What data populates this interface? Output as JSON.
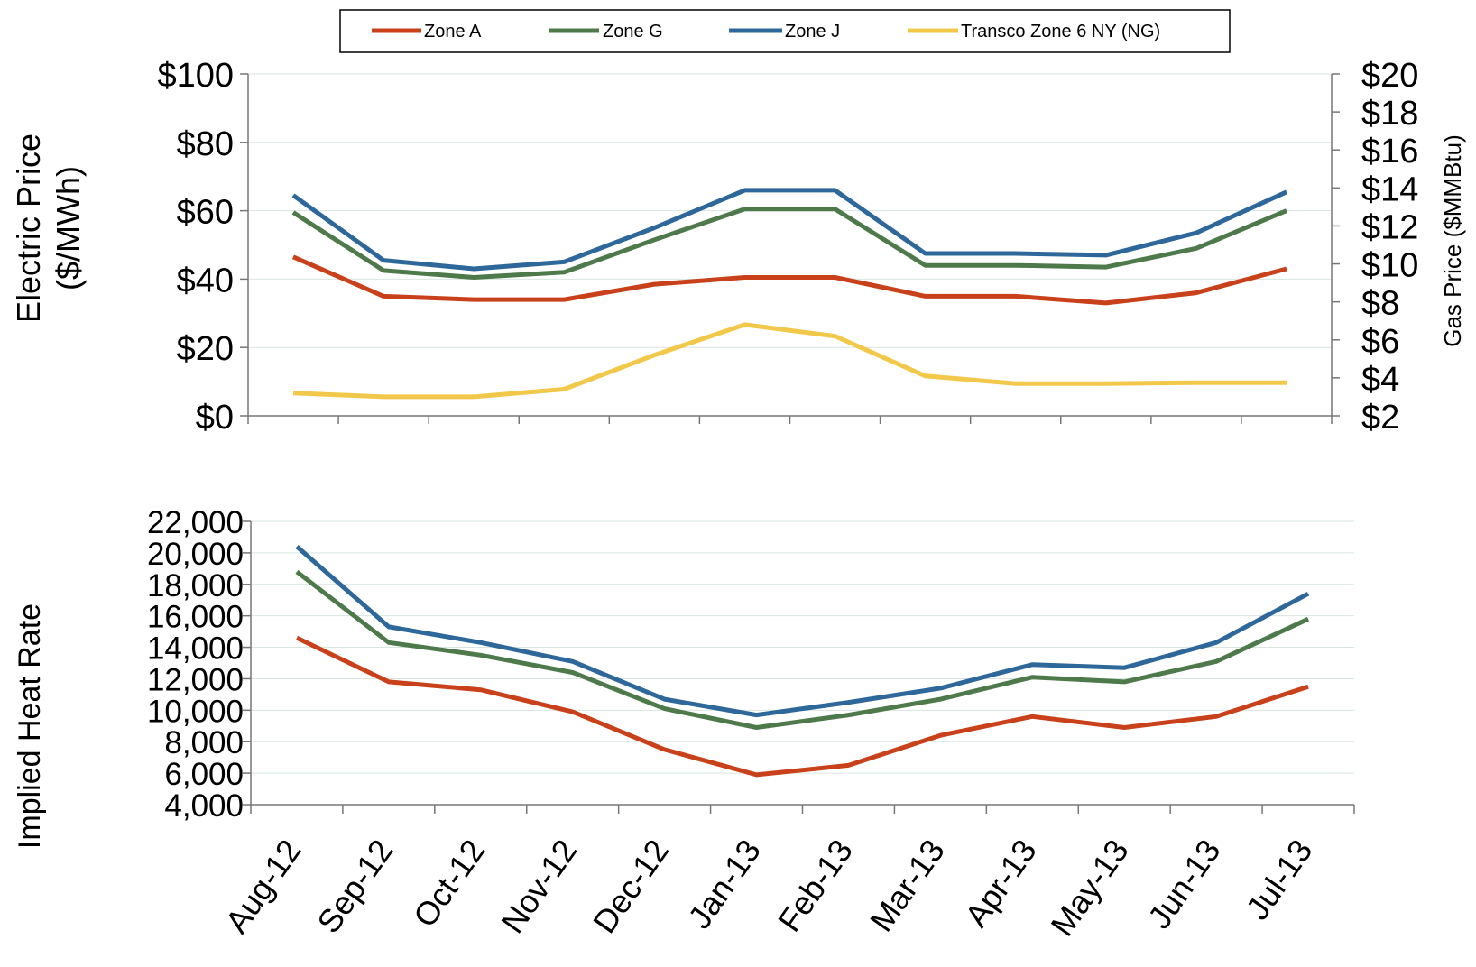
{
  "legend": {
    "items": [
      {
        "name": "Zone A",
        "color": "#c8411b"
      },
      {
        "name": "Zone G",
        "color": "#4e7a4b"
      },
      {
        "name": "Zone J",
        "color": "#2e679a"
      },
      {
        "name": "Transco Zone 6 NY (NG)",
        "color": "#f2c84b"
      }
    ]
  },
  "chart_data": [
    {
      "type": "line",
      "ylabel_lines": [
        "Electric Price",
        "($/MWh)"
      ],
      "y2label": "Gas Price ($MMBtu)",
      "categories": [
        "Aug-12",
        "Sep-12",
        "Oct-12",
        "Nov-12",
        "Dec-12",
        "Jan-13",
        "Feb-13",
        "Mar-13",
        "Apr-13",
        "May-13",
        "Jun-13",
        "Jul-13"
      ],
      "ylim": [
        0,
        100
      ],
      "yticks": [
        "$0",
        "$20",
        "$40",
        "$60",
        "$80",
        "$100"
      ],
      "y2lim": [
        2,
        20
      ],
      "y2ticks": [
        "$2",
        "$4",
        "$6",
        "$8",
        "$10",
        "$12",
        "$14",
        "$16",
        "$18",
        "$20"
      ],
      "grid": true,
      "series": [
        {
          "name": "Zone A",
          "axis": "left",
          "color": "#c8411b",
          "values": [
            46.5,
            35,
            34,
            34,
            38.5,
            40.5,
            40.5,
            35,
            35,
            33,
            36,
            43
          ]
        },
        {
          "name": "Zone G",
          "axis": "left",
          "color": "#4e7a4b",
          "values": [
            59.5,
            42.5,
            40.5,
            42,
            51.5,
            60.5,
            60.5,
            44,
            44,
            43.5,
            49,
            60
          ]
        },
        {
          "name": "Zone J",
          "axis": "left",
          "color": "#2e679a",
          "values": [
            64.5,
            45.5,
            43,
            45,
            55,
            66,
            66,
            47.5,
            47.5,
            47,
            53.5,
            65.5
          ]
        },
        {
          "name": "Transco Zone 6 NY (NG)",
          "axis": "right",
          "color": "#f2c84b",
          "values": [
            3.2,
            3.0,
            3.0,
            3.4,
            5.2,
            6.8,
            6.2,
            4.1,
            3.7,
            3.7,
            3.75,
            3.75
          ]
        }
      ]
    },
    {
      "type": "line",
      "ylabel": "Implied Heat Rate",
      "categories": [
        "Aug-12",
        "Sep-12",
        "Oct-12",
        "Nov-12",
        "Dec-12",
        "Jan-13",
        "Feb-13",
        "Mar-13",
        "Apr-13",
        "May-13",
        "Jun-13",
        "Jul-13"
      ],
      "ylim": [
        4000,
        22000
      ],
      "yticks": [
        "4,000",
        "6,000",
        "8,000",
        "10,000",
        "12,000",
        "14,000",
        "16,000",
        "18,000",
        "20,000",
        "22,000"
      ],
      "grid": true,
      "series": [
        {
          "name": "Zone A",
          "color": "#c8411b",
          "values": [
            14600,
            11800,
            11300,
            9900,
            7500,
            5900,
            6500,
            8400,
            9600,
            8900,
            9600,
            11500
          ]
        },
        {
          "name": "Zone G",
          "color": "#4e7a4b",
          "values": [
            18800,
            14300,
            13500,
            12400,
            10100,
            8900,
            9700,
            10700,
            12100,
            11800,
            13100,
            15800
          ]
        },
        {
          "name": "Zone J",
          "color": "#2e679a",
          "values": [
            20400,
            15300,
            14300,
            13100,
            10700,
            9700,
            10500,
            11400,
            12900,
            12700,
            14300,
            17400
          ]
        }
      ]
    }
  ]
}
